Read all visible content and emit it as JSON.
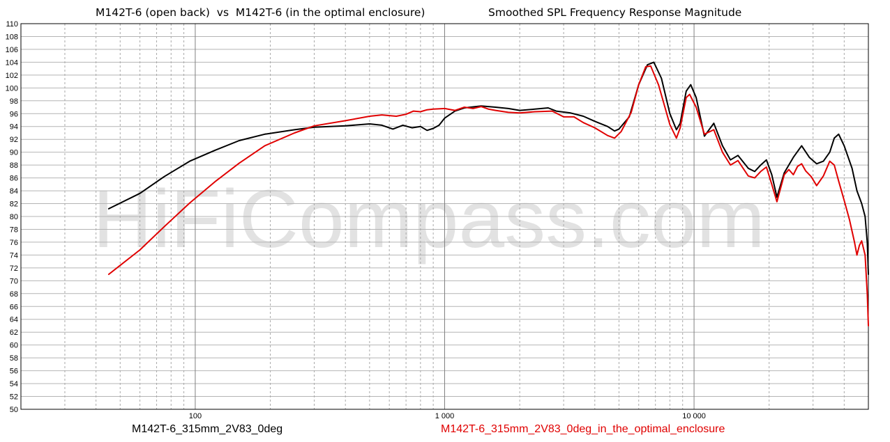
{
  "title_main": "M142T-6 (open back)  vs  M142T-6 (in the optimal enclosure)",
  "title_sub": "Smoothed SPL Frequency Response Magnitude",
  "watermark": "HiFiCompass.com",
  "chart_data": {
    "type": "line",
    "title": "M142T-6 (open back)  vs  M142T-6 (in the optimal enclosure)    Smoothed SPL Frequency Response Magnitude",
    "x_scale": "log",
    "xlim": [
      20,
      50000
    ],
    "ylim": [
      50,
      110
    ],
    "y_ticks": [
      50,
      52,
      54,
      56,
      58,
      60,
      62,
      64,
      66,
      68,
      70,
      72,
      74,
      76,
      78,
      80,
      82,
      84,
      86,
      88,
      90,
      92,
      94,
      96,
      98,
      100,
      102,
      104,
      106,
      108,
      110
    ],
    "x_tick_labels": [
      {
        "value": 100,
        "label": "100"
      },
      {
        "value": 1000,
        "label": "1 000"
      },
      {
        "value": 10000,
        "label": "10 000"
      }
    ],
    "grid": true,
    "series": [
      {
        "name": "M142T-6_315mm_2V83_0deg",
        "color": "#000000",
        "points": [
          [
            45,
            81.2
          ],
          [
            60,
            83.6
          ],
          [
            75,
            86.2
          ],
          [
            95,
            88.6
          ],
          [
            120,
            90.3
          ],
          [
            150,
            91.8
          ],
          [
            190,
            92.8
          ],
          [
            250,
            93.5
          ],
          [
            300,
            93.9
          ],
          [
            400,
            94.1
          ],
          [
            500,
            94.4
          ],
          [
            560,
            94.2
          ],
          [
            620,
            93.6
          ],
          [
            680,
            94.2
          ],
          [
            740,
            93.8
          ],
          [
            800,
            94.0
          ],
          [
            850,
            93.4
          ],
          [
            900,
            93.7
          ],
          [
            950,
            94.2
          ],
          [
            1000,
            95.3
          ],
          [
            1100,
            96.4
          ],
          [
            1200,
            96.9
          ],
          [
            1400,
            97.2
          ],
          [
            1600,
            97.0
          ],
          [
            1800,
            96.8
          ],
          [
            2000,
            96.5
          ],
          [
            2300,
            96.7
          ],
          [
            2600,
            96.9
          ],
          [
            2800,
            96.4
          ],
          [
            3200,
            96.1
          ],
          [
            3600,
            95.6
          ],
          [
            4000,
            94.8
          ],
          [
            4500,
            94.0
          ],
          [
            4800,
            93.3
          ],
          [
            5000,
            93.6
          ],
          [
            5500,
            95.5
          ],
          [
            6000,
            100.5
          ],
          [
            6500,
            103.6
          ],
          [
            6900,
            104.0
          ],
          [
            7400,
            101.5
          ],
          [
            8000,
            96.0
          ],
          [
            8500,
            93.5
          ],
          [
            8800,
            94.5
          ],
          [
            9300,
            99.5
          ],
          [
            9700,
            100.5
          ],
          [
            10200,
            98.5
          ],
          [
            11000,
            92.5
          ],
          [
            12000,
            94.5
          ],
          [
            13000,
            91.0
          ],
          [
            14000,
            88.8
          ],
          [
            15000,
            89.5
          ],
          [
            16500,
            87.5
          ],
          [
            17500,
            87.0
          ],
          [
            18500,
            88.0
          ],
          [
            19500,
            88.8
          ],
          [
            20500,
            86.5
          ],
          [
            21500,
            83.0
          ],
          [
            23000,
            86.8
          ],
          [
            25000,
            89.2
          ],
          [
            27000,
            91.0
          ],
          [
            29000,
            89.2
          ],
          [
            31000,
            88.2
          ],
          [
            33000,
            88.6
          ],
          [
            35000,
            90.0
          ],
          [
            36500,
            92.2
          ],
          [
            38000,
            92.8
          ],
          [
            40000,
            91.0
          ],
          [
            43000,
            87.5
          ],
          [
            45000,
            84.0
          ],
          [
            47000,
            82.0
          ],
          [
            48500,
            80.0
          ],
          [
            49500,
            76.0
          ],
          [
            50000,
            71.0
          ]
        ]
      },
      {
        "name": "M142T-6_315mm_2V83_0deg_in_the_optimal_enclosure",
        "color": "#e00000",
        "points": [
          [
            45,
            71.0
          ],
          [
            60,
            74.8
          ],
          [
            75,
            78.4
          ],
          [
            95,
            82.1
          ],
          [
            120,
            85.4
          ],
          [
            150,
            88.3
          ],
          [
            190,
            91.0
          ],
          [
            250,
            93.0
          ],
          [
            300,
            94.1
          ],
          [
            400,
            94.9
          ],
          [
            500,
            95.6
          ],
          [
            560,
            95.8
          ],
          [
            640,
            95.6
          ],
          [
            700,
            95.9
          ],
          [
            750,
            96.4
          ],
          [
            800,
            96.3
          ],
          [
            850,
            96.6
          ],
          [
            900,
            96.7
          ],
          [
            1000,
            96.8
          ],
          [
            1100,
            96.5
          ],
          [
            1200,
            97.0
          ],
          [
            1300,
            96.8
          ],
          [
            1400,
            97.1
          ],
          [
            1500,
            96.7
          ],
          [
            1600,
            96.5
          ],
          [
            1800,
            96.2
          ],
          [
            2000,
            96.1
          ],
          [
            2300,
            96.3
          ],
          [
            2700,
            96.4
          ],
          [
            3000,
            95.5
          ],
          [
            3300,
            95.5
          ],
          [
            3600,
            94.6
          ],
          [
            4000,
            93.8
          ],
          [
            4500,
            92.6
          ],
          [
            4800,
            92.2
          ],
          [
            5100,
            93.2
          ],
          [
            5600,
            96.2
          ],
          [
            6000,
            100.5
          ],
          [
            6400,
            103.3
          ],
          [
            6700,
            103.4
          ],
          [
            7200,
            100.5
          ],
          [
            8000,
            94.3
          ],
          [
            8500,
            92.2
          ],
          [
            8800,
            93.8
          ],
          [
            9300,
            98.5
          ],
          [
            9600,
            99.0
          ],
          [
            10200,
            97.0
          ],
          [
            11000,
            92.8
          ],
          [
            12000,
            93.5
          ],
          [
            13000,
            90.0
          ],
          [
            14000,
            88.0
          ],
          [
            15000,
            88.7
          ],
          [
            16500,
            86.3
          ],
          [
            17500,
            86.0
          ],
          [
            18500,
            87.0
          ],
          [
            19500,
            87.7
          ],
          [
            20500,
            85.0
          ],
          [
            21500,
            82.3
          ],
          [
            23000,
            86.5
          ],
          [
            24000,
            87.3
          ],
          [
            25000,
            86.5
          ],
          [
            26000,
            87.8
          ],
          [
            27000,
            88.2
          ],
          [
            28000,
            87.1
          ],
          [
            29500,
            86.2
          ],
          [
            31000,
            84.8
          ],
          [
            33000,
            86.3
          ],
          [
            35000,
            88.6
          ],
          [
            36500,
            88.0
          ],
          [
            38000,
            85.5
          ],
          [
            40000,
            82.5
          ],
          [
            42000,
            79.5
          ],
          [
            44000,
            76.0
          ],
          [
            45000,
            74.0
          ],
          [
            46000,
            75.5
          ],
          [
            47000,
            76.2
          ],
          [
            48500,
            74.0
          ],
          [
            49500,
            68.0
          ],
          [
            50000,
            63.0
          ]
        ]
      }
    ]
  }
}
